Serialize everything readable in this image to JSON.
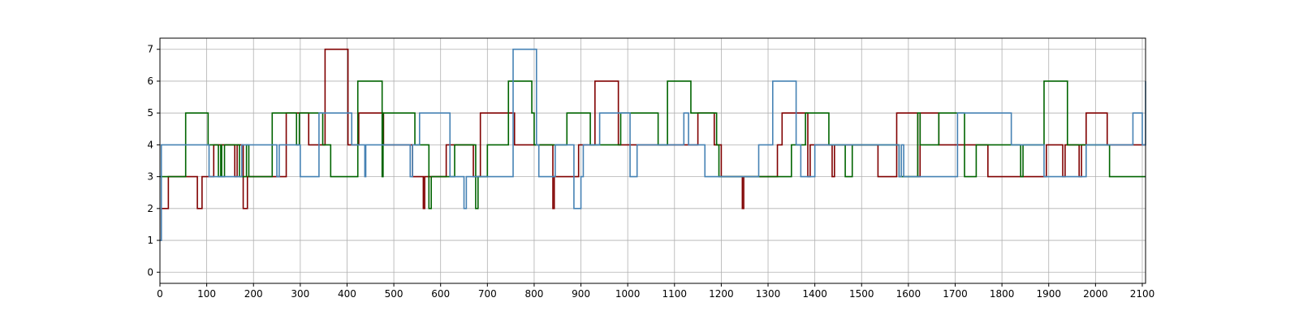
{
  "chart_data": {
    "type": "line",
    "step": "post",
    "title": "",
    "xlabel": "",
    "ylabel": "",
    "xlim": [
      0,
      2107
    ],
    "ylim": [
      -0.35,
      7.35
    ],
    "grid": true,
    "legend": "none",
    "x_ticks": [
      0,
      100,
      200,
      300,
      400,
      500,
      600,
      700,
      800,
      900,
      1000,
      1100,
      1200,
      1300,
      1400,
      1500,
      1600,
      1700,
      1800,
      1900,
      2000,
      2100
    ],
    "y_ticks": [
      0,
      1,
      2,
      3,
      4,
      5,
      6,
      7
    ],
    "series": [
      {
        "color": "#800000",
        "x": [
          0,
          3,
          18,
          80,
          85,
          90,
          115,
          160,
          165,
          178,
          182,
          187,
          265,
          270,
          318,
          335,
          345,
          353,
          402,
          410,
          425,
          450,
          475,
          478,
          478,
          535,
          540,
          563,
          566,
          570,
          612,
          615,
          668,
          670,
          685,
          752,
          758,
          800,
          840,
          843,
          850,
          895,
          905,
          930,
          980,
          988,
          1050,
          1140,
          1150,
          1180,
          1185,
          1200,
          1245,
          1248,
          1310,
          1320,
          1330,
          1375,
          1385,
          1390,
          1395,
          1437,
          1442,
          1450,
          1460,
          1535,
          1565,
          1575,
          1585,
          1620,
          1625,
          1635,
          1650,
          1665,
          1680,
          1720,
          1770,
          1825,
          1830,
          1875,
          1880,
          1890,
          1895,
          1930,
          1935,
          1965,
          1970,
          1980,
          1983,
          2025,
          2070,
          2090,
          2100,
          2107
        ],
        "y": [
          1,
          2,
          3,
          2,
          2,
          3,
          4,
          3,
          4,
          2,
          2,
          3,
          3,
          5,
          4,
          4,
          4,
          7,
          4,
          4,
          5,
          5,
          5,
          4,
          4,
          4,
          3,
          2,
          3,
          3,
          4,
          4,
          4,
          3,
          5,
          5,
          4,
          4,
          2,
          3,
          3,
          4,
          4,
          6,
          4,
          4,
          4,
          4,
          5,
          5,
          4,
          3,
          2,
          3,
          3,
          4,
          5,
          5,
          3,
          4,
          4,
          3,
          4,
          4,
          4,
          3,
          3,
          5,
          5,
          3,
          5,
          5,
          5,
          4,
          4,
          4,
          3,
          3,
          3,
          3,
          3,
          3,
          4,
          3,
          4,
          3,
          4,
          5,
          5,
          4,
          4,
          4,
          4,
          4
        ]
      },
      {
        "color": "#006400",
        "x": [
          0,
          3,
          55,
          103,
          125,
          130,
          132,
          138,
          170,
          185,
          190,
          240,
          255,
          292,
          298,
          348,
          365,
          423,
          475,
          477,
          535,
          545,
          575,
          580,
          630,
          635,
          675,
          680,
          690,
          700,
          745,
          795,
          800,
          810,
          835,
          850,
          870,
          920,
          935,
          975,
          985,
          1035,
          1060,
          1065,
          1085,
          1135,
          1145,
          1190,
          1195,
          1232,
          1280,
          1350,
          1355,
          1380,
          1385,
          1430,
          1460,
          1465,
          1475,
          1480,
          1535,
          1575,
          1580,
          1620,
          1625,
          1660,
          1665,
          1720,
          1745,
          1800,
          1840,
          1845,
          1890,
          1940,
          1980,
          2030,
          2107
        ],
        "y": [
          3,
          3,
          5,
          4,
          3,
          4,
          3,
          4,
          3,
          4,
          3,
          5,
          5,
          4,
          5,
          4,
          3,
          6,
          3,
          5,
          5,
          4,
          2,
          3,
          4,
          4,
          2,
          3,
          3,
          4,
          6,
          5,
          4,
          4,
          4,
          4,
          5,
          4,
          4,
          4,
          5,
          5,
          5,
          4,
          6,
          5,
          5,
          4,
          3,
          3,
          3,
          4,
          4,
          5,
          5,
          4,
          4,
          3,
          3,
          4,
          4,
          4,
          3,
          5,
          4,
          4,
          5,
          3,
          4,
          4,
          3,
          4,
          6,
          4,
          4,
          3,
          3
        ]
      },
      {
        "color": "#4682b4",
        "x": [
          0,
          3,
          105,
          175,
          180,
          250,
          255,
          300,
          305,
          340,
          345,
          410,
          435,
          438,
          440,
          445,
          460,
          535,
          540,
          555,
          620,
          625,
          650,
          655,
          690,
          755,
          805,
          810,
          820,
          845,
          885,
          890,
          900,
          905,
          940,
          1005,
          1010,
          1020,
          1120,
          1130,
          1165,
          1210,
          1225,
          1280,
          1310,
          1360,
          1370,
          1400,
          1480,
          1535,
          1580,
          1585,
          1590,
          1620,
          1705,
          1820,
          1825,
          1890,
          1940,
          1970,
          1980,
          2080,
          2100,
          2107
        ],
        "y": [
          1,
          4,
          3,
          4,
          4,
          3,
          4,
          3,
          3,
          5,
          5,
          4,
          4,
          3,
          4,
          4,
          4,
          3,
          4,
          5,
          3,
          3,
          2,
          3,
          3,
          7,
          4,
          3,
          3,
          4,
          2,
          2,
          3,
          4,
          5,
          3,
          3,
          4,
          5,
          4,
          3,
          3,
          3,
          4,
          6,
          4,
          3,
          4,
          4,
          4,
          3,
          4,
          3,
          3,
          5,
          4,
          4,
          3,
          3,
          3,
          4,
          5,
          4,
          6
        ]
      }
    ]
  }
}
